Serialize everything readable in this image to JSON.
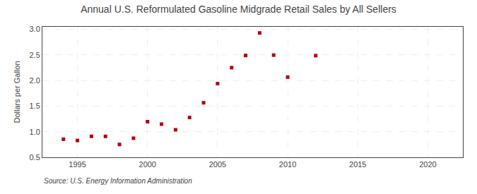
{
  "chart_data": {
    "type": "scatter",
    "title": "Annual U.S. Reformulated Gasoline Midgrade Retail Sales by All Sellers",
    "ylabel": "Dollars per Gallon",
    "annotations": [
      "Source: U.S. Energy Information Administration"
    ],
    "x": [
      1994,
      1995,
      1996,
      1997,
      1998,
      1999,
      2000,
      2001,
      2002,
      2003,
      2004,
      2005,
      2006,
      2007,
      2008,
      2009,
      2010,
      2012
    ],
    "values": [
      0.853,
      0.829,
      0.91,
      0.909,
      0.751,
      0.873,
      1.196,
      1.148,
      1.038,
      1.278,
      1.566,
      1.94,
      2.252,
      2.49,
      2.93,
      2.497,
      2.067,
      2.487
    ],
    "color": "#bb0000",
    "marker": "square",
    "xlim": [
      1992.5,
      2022.5
    ],
    "ylim": [
      0.5,
      3.05
    ],
    "xticks": [
      1995,
      2000,
      2005,
      2010,
      2015,
      2020
    ],
    "yticks": [
      0.5,
      {
        "value": 1.0,
        "label": "1.0"
      },
      1.5,
      {
        "value": 2.0,
        "label": "2.0"
      },
      2.5,
      {
        "value": 3.0,
        "label": "3.0"
      }
    ],
    "grid": true
  }
}
